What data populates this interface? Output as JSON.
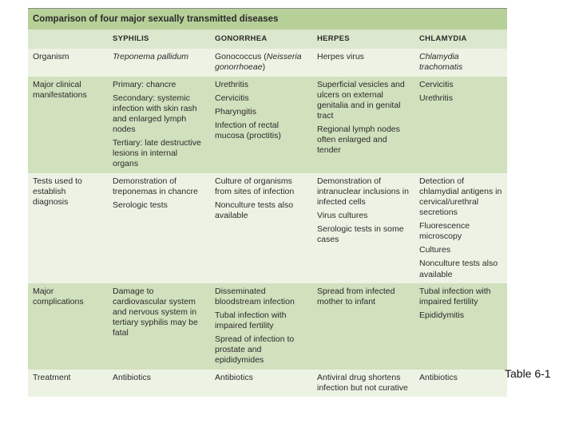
{
  "caption": "Table 6-1",
  "table": {
    "title": "Comparison of four major sexually transmitted diseases",
    "colors": {
      "title_bg": "#b7d098",
      "header_bg": "#dce8cd",
      "row_odd_bg": "#edf3e4",
      "row_even_bg": "#d1e0bd",
      "text": "#2a2a2a"
    },
    "column_headers": [
      "",
      "SYPHILIS",
      "GONORRHEA",
      "HERPES",
      "CHLAMYDIA"
    ],
    "row_labels": [
      "Organism",
      "Major clinical manifestations",
      "Tests used to establish diagnosis",
      "Major complications",
      "Treatment"
    ],
    "cells": {
      "organism": {
        "syphilis": [
          "Treponema pallidum"
        ],
        "gonorrhea": [
          "Gonococcus (Neisseria gonorrhoeae)"
        ],
        "herpes": [
          "Herpes virus"
        ],
        "chlamydia": [
          "Chlamydia trachomatis"
        ]
      },
      "manifestations": {
        "syphilis": [
          "Primary: chancre",
          "Secondary: systemic infection with skin rash and enlarged lymph nodes",
          "Tertiary: late destructive lesions in internal organs"
        ],
        "gonorrhea": [
          "Urethritis",
          "Cervicitis",
          "Pharyngitis",
          "Infection of rectal mucosa (proctitis)"
        ],
        "herpes": [
          "Superficial vesicles and ulcers on external genitalia and in genital tract",
          "Regional lymph nodes often enlarged and tender"
        ],
        "chlamydia": [
          "Cervicitis",
          "Urethritis"
        ]
      },
      "tests": {
        "syphilis": [
          "Demonstration of treponemas in chancre",
          "Serologic tests"
        ],
        "gonorrhea": [
          "Culture of organisms from sites of infection",
          "Nonculture tests also available"
        ],
        "herpes": [
          "Demonstration of intranuclear inclusions in infected cells",
          "Virus cultures",
          "Serologic tests in some cases"
        ],
        "chlamydia": [
          "Detection of chlamydial antigens in cervical/urethral secretions",
          "Fluorescence microscopy",
          "Cultures",
          "Nonculture tests also available"
        ]
      },
      "complications": {
        "syphilis": [
          "Damage to cardiovascular system and nervous system in tertiary syphilis may be fatal"
        ],
        "gonorrhea": [
          "Disseminated bloodstream infection",
          "Tubal infection with impaired fertility",
          "Spread of infection to prostate and epididymides"
        ],
        "herpes": [
          "Spread from infected mother to infant"
        ],
        "chlamydia": [
          "Tubal infection with impaired fertility",
          "Epididymitis"
        ]
      },
      "treatment": {
        "syphilis": [
          "Antibiotics"
        ],
        "gonorrhea": [
          "Antibiotics"
        ],
        "herpes": [
          "Antiviral drug shortens infection but not curative"
        ],
        "chlamydia": [
          "Antibiotics"
        ]
      }
    }
  }
}
